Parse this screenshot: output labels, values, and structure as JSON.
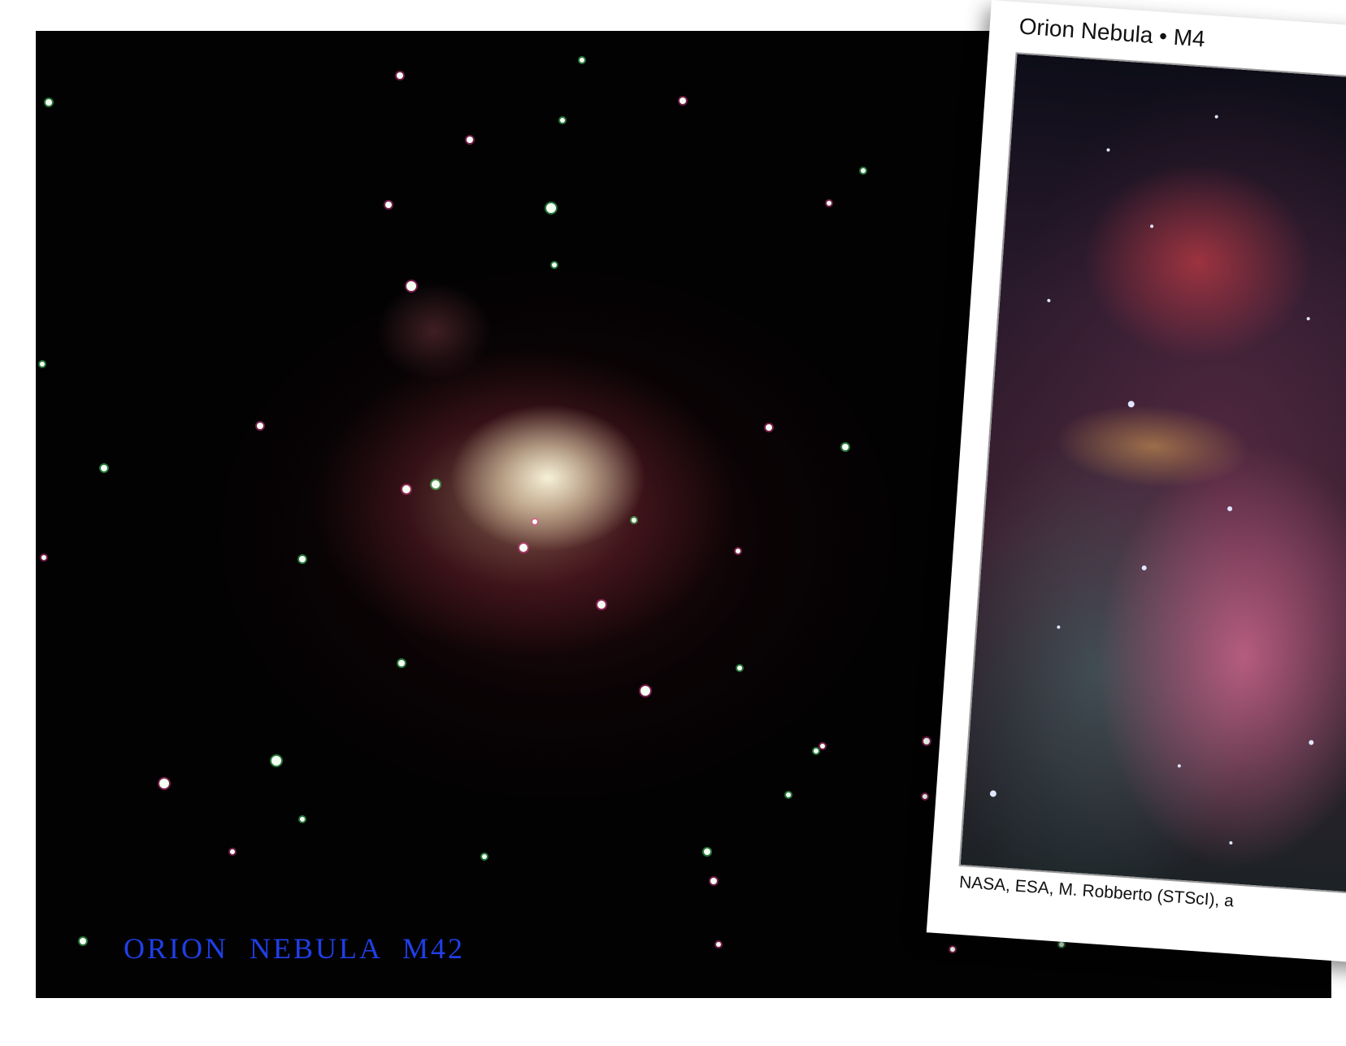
{
  "main_photo": {
    "caption": "ORION NEBULA M42",
    "caption_color": "#1f3fe8"
  },
  "print_card": {
    "title": "Orion Nebula • M4",
    "credit": "NASA, ESA, M. Robberto (STScI), a"
  }
}
